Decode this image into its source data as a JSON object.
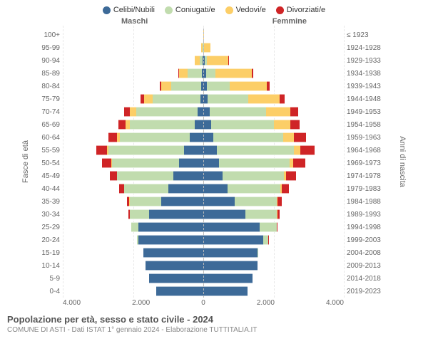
{
  "legend": [
    {
      "label": "Celibi/Nubili",
      "color": "#3d6a98"
    },
    {
      "label": "Coniugati/e",
      "color": "#c1dcae"
    },
    {
      "label": "Vedovi/e",
      "color": "#fcce67"
    },
    {
      "label": "Divorziati/e",
      "color": "#cf2426"
    }
  ],
  "side_labels": {
    "male": "Maschi",
    "female": "Femmine"
  },
  "axis_labels": {
    "left": "Fasce di età",
    "right": "Anni di nascita"
  },
  "x_axis": {
    "max": 4000,
    "ticks": [
      "4.000",
      "2.000",
      "0",
      "2.000",
      "4.000"
    ],
    "tick_positions_pct": [
      0,
      25,
      50,
      75,
      100
    ]
  },
  "colors": {
    "celibi": "#3d6a98",
    "coniugati": "#c1dcae",
    "vedovi": "#fcce67",
    "divorziati": "#cf2426",
    "grid": "#e8e8e8",
    "text": "#666666"
  },
  "rows": [
    {
      "age": "100+",
      "birth": "≤ 1923",
      "m": {
        "c": 0,
        "co": 0,
        "v": 5,
        "d": 0
      },
      "f": {
        "c": 0,
        "co": 0,
        "v": 20,
        "d": 0
      }
    },
    {
      "age": "95-99",
      "birth": "1924-1928",
      "m": {
        "c": 5,
        "co": 10,
        "v": 40,
        "d": 0
      },
      "f": {
        "c": 10,
        "co": 5,
        "v": 180,
        "d": 0
      }
    },
    {
      "age": "90-94",
      "birth": "1929-1933",
      "m": {
        "c": 20,
        "co": 80,
        "v": 140,
        "d": 5
      },
      "f": {
        "c": 50,
        "co": 50,
        "v": 620,
        "d": 10
      }
    },
    {
      "age": "85-89",
      "birth": "1934-1938",
      "m": {
        "c": 40,
        "co": 400,
        "v": 260,
        "d": 20
      },
      "f": {
        "c": 90,
        "co": 250,
        "v": 1050,
        "d": 40
      }
    },
    {
      "age": "80-84",
      "birth": "1939-1943",
      "m": {
        "c": 60,
        "co": 850,
        "v": 280,
        "d": 50
      },
      "f": {
        "c": 110,
        "co": 650,
        "v": 1050,
        "d": 80
      }
    },
    {
      "age": "75-79",
      "birth": "1944-1948",
      "m": {
        "c": 90,
        "co": 1350,
        "v": 240,
        "d": 100
      },
      "f": {
        "c": 130,
        "co": 1150,
        "v": 900,
        "d": 140
      }
    },
    {
      "age": "70-74",
      "birth": "1949-1953",
      "m": {
        "c": 160,
        "co": 1750,
        "v": 180,
        "d": 160
      },
      "f": {
        "c": 180,
        "co": 1600,
        "v": 700,
        "d": 220
      }
    },
    {
      "age": "65-69",
      "birth": "1954-1958",
      "m": {
        "c": 250,
        "co": 1850,
        "v": 110,
        "d": 200
      },
      "f": {
        "c": 220,
        "co": 1800,
        "v": 450,
        "d": 280
      }
    },
    {
      "age": "60-64",
      "birth": "1959-1963",
      "m": {
        "c": 380,
        "co": 2000,
        "v": 70,
        "d": 260
      },
      "f": {
        "c": 280,
        "co": 2000,
        "v": 300,
        "d": 340
      }
    },
    {
      "age": "55-59",
      "birth": "1964-1968",
      "m": {
        "c": 550,
        "co": 2150,
        "v": 50,
        "d": 300
      },
      "f": {
        "c": 380,
        "co": 2200,
        "v": 180,
        "d": 400
      }
    },
    {
      "age": "50-54",
      "birth": "1969-1973",
      "m": {
        "c": 700,
        "co": 1900,
        "v": 30,
        "d": 260
      },
      "f": {
        "c": 450,
        "co": 2000,
        "v": 110,
        "d": 350
      }
    },
    {
      "age": "45-49",
      "birth": "1974-1978",
      "m": {
        "c": 850,
        "co": 1600,
        "v": 15,
        "d": 200
      },
      "f": {
        "c": 550,
        "co": 1750,
        "v": 60,
        "d": 280
      }
    },
    {
      "age": "40-44",
      "birth": "1979-1983",
      "m": {
        "c": 1000,
        "co": 1250,
        "v": 8,
        "d": 130
      },
      "f": {
        "c": 700,
        "co": 1500,
        "v": 30,
        "d": 200
      }
    },
    {
      "age": "35-39",
      "birth": "1984-1988",
      "m": {
        "c": 1200,
        "co": 900,
        "v": 3,
        "d": 70
      },
      "f": {
        "c": 900,
        "co": 1200,
        "v": 15,
        "d": 120
      }
    },
    {
      "age": "30-34",
      "birth": "1989-1993",
      "m": {
        "c": 1550,
        "co": 550,
        "v": 0,
        "d": 30
      },
      "f": {
        "c": 1200,
        "co": 900,
        "v": 5,
        "d": 60
      }
    },
    {
      "age": "25-29",
      "birth": "1994-1998",
      "m": {
        "c": 1850,
        "co": 200,
        "v": 0,
        "d": 8
      },
      "f": {
        "c": 1600,
        "co": 500,
        "v": 0,
        "d": 20
      }
    },
    {
      "age": "20-24",
      "birth": "1999-2003",
      "m": {
        "c": 1850,
        "co": 40,
        "v": 0,
        "d": 0
      },
      "f": {
        "c": 1700,
        "co": 150,
        "v": 0,
        "d": 3
      }
    },
    {
      "age": "15-19",
      "birth": "2004-2008",
      "m": {
        "c": 1700,
        "co": 3,
        "v": 0,
        "d": 0
      },
      "f": {
        "c": 1550,
        "co": 15,
        "v": 0,
        "d": 0
      }
    },
    {
      "age": "10-14",
      "birth": "2009-2013",
      "m": {
        "c": 1650,
        "co": 0,
        "v": 0,
        "d": 0
      },
      "f": {
        "c": 1550,
        "co": 0,
        "v": 0,
        "d": 0
      }
    },
    {
      "age": "5-9",
      "birth": "2014-2018",
      "m": {
        "c": 1550,
        "co": 0,
        "v": 0,
        "d": 0
      },
      "f": {
        "c": 1400,
        "co": 0,
        "v": 0,
        "d": 0
      }
    },
    {
      "age": "0-4",
      "birth": "2019-2023",
      "m": {
        "c": 1350,
        "co": 0,
        "v": 0,
        "d": 0
      },
      "f": {
        "c": 1250,
        "co": 0,
        "v": 0,
        "d": 0
      }
    }
  ],
  "footer": {
    "title": "Popolazione per età, sesso e stato civile - 2024",
    "subtitle": "COMUNE DI ASTI - Dati ISTAT 1° gennaio 2024 - Elaborazione TUTTITALIA.IT"
  }
}
